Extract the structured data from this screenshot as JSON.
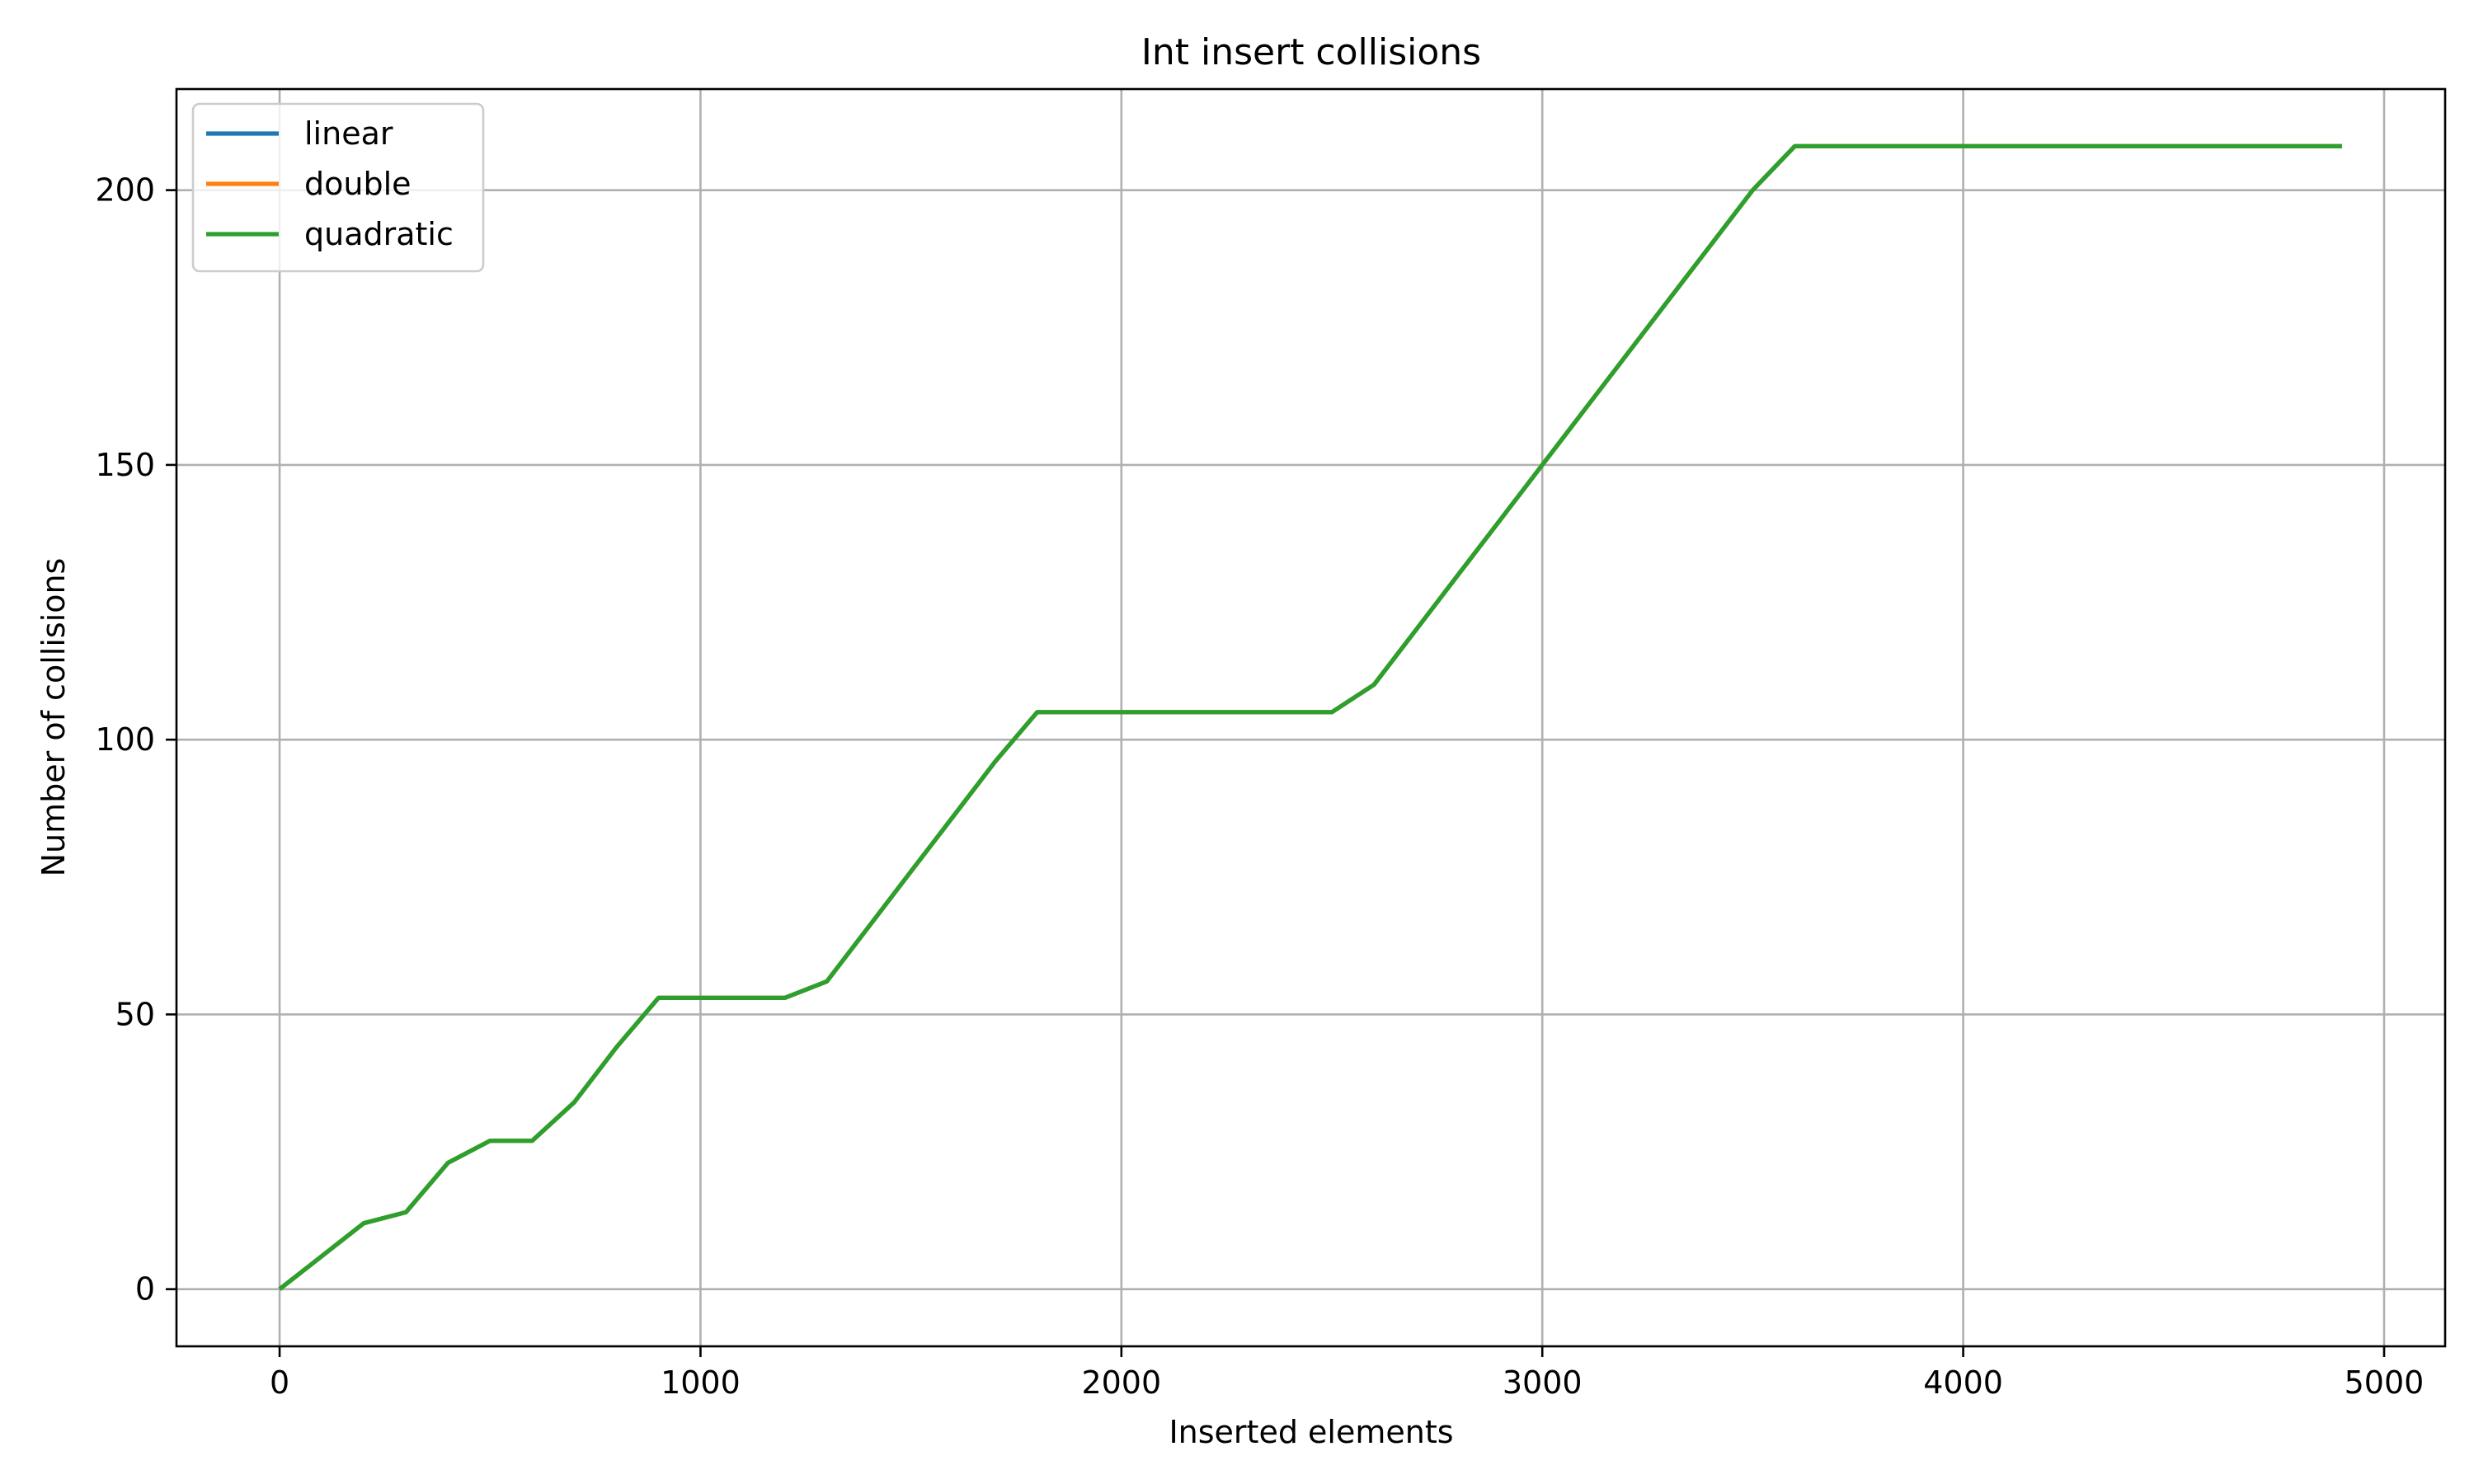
{
  "chart_data": {
    "type": "line",
    "title": "Int insert collisions",
    "xlabel": "Inserted elements",
    "ylabel": "Number of collisions",
    "xlim": [
      -245,
      5145
    ],
    "ylim": [
      -10.4,
      218.4
    ],
    "xticks": [
      0,
      1000,
      2000,
      3000,
      4000,
      5000
    ],
    "yticks": [
      0,
      50,
      100,
      150,
      200
    ],
    "grid": true,
    "legend_position": "top-left",
    "x": [
      0,
      100,
      200,
      300,
      400,
      500,
      600,
      700,
      800,
      900,
      1000,
      1100,
      1200,
      1300,
      1400,
      1500,
      1600,
      1700,
      1800,
      1900,
      2000,
      2100,
      2200,
      2300,
      2400,
      2500,
      2600,
      2700,
      2800,
      2900,
      3000,
      3100,
      3200,
      3300,
      3400,
      3500,
      3600,
      3700,
      3800,
      3900,
      4000,
      4100,
      4200,
      4300,
      4400,
      4500,
      4600,
      4700,
      4800,
      4900
    ],
    "series": [
      {
        "name": "linear",
        "color": "#1f77b4",
        "values": [
          0,
          6,
          12,
          14,
          23,
          27,
          27,
          34,
          44,
          53,
          53,
          53,
          53,
          56,
          66,
          76,
          86,
          96,
          105,
          105,
          105,
          105,
          105,
          105,
          105,
          105,
          110,
          120,
          130,
          140,
          150,
          160,
          170,
          180,
          190,
          200,
          208,
          208,
          208,
          208,
          208,
          208,
          208,
          208,
          208,
          208,
          208,
          208,
          208,
          208
        ]
      },
      {
        "name": "double",
        "color": "#ff7f0e",
        "values": [
          0,
          6,
          12,
          14,
          23,
          27,
          27,
          34,
          44,
          53,
          53,
          53,
          53,
          56,
          66,
          76,
          86,
          96,
          105,
          105,
          105,
          105,
          105,
          105,
          105,
          105,
          110,
          120,
          130,
          140,
          150,
          160,
          170,
          180,
          190,
          200,
          208,
          208,
          208,
          208,
          208,
          208,
          208,
          208,
          208,
          208,
          208,
          208,
          208,
          208
        ]
      },
      {
        "name": "quadratic",
        "color": "#2ca02c",
        "values": [
          0,
          6,
          12,
          14,
          23,
          27,
          27,
          34,
          44,
          53,
          53,
          53,
          53,
          56,
          66,
          76,
          86,
          96,
          105,
          105,
          105,
          105,
          105,
          105,
          105,
          105,
          110,
          120,
          130,
          140,
          150,
          160,
          170,
          180,
          190,
          200,
          208,
          208,
          208,
          208,
          208,
          208,
          208,
          208,
          208,
          208,
          208,
          208,
          208,
          208
        ]
      }
    ]
  }
}
